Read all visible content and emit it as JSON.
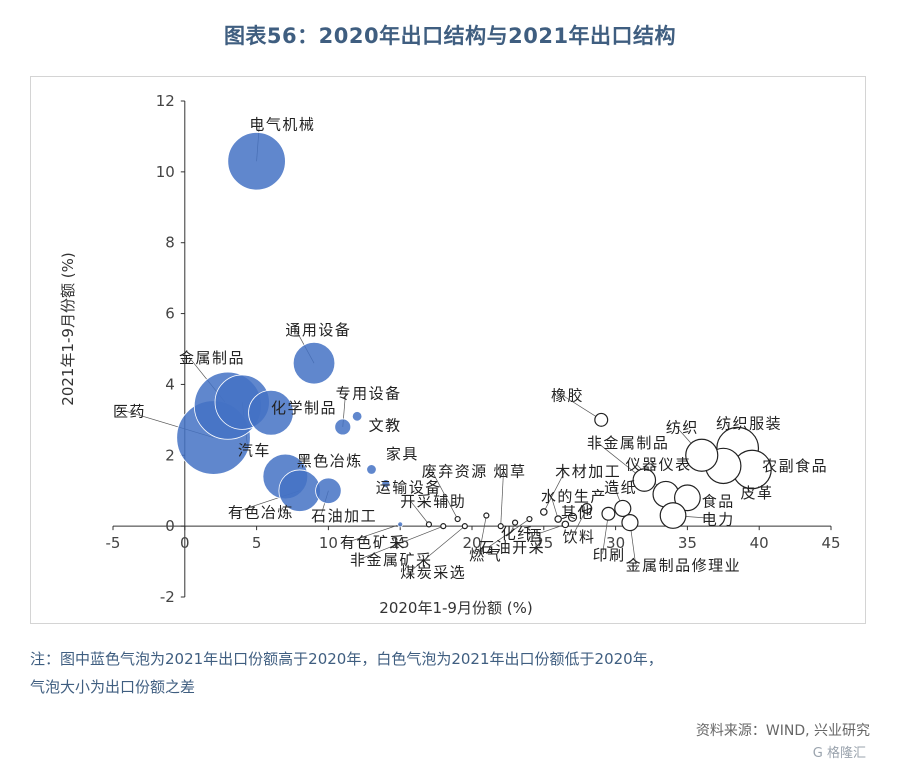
{
  "title": "图表56：2020年出口结构与2021年出口结构",
  "note_line1": "注：图中蓝色气泡为2021年出口份额高于2020年，白色气泡为2021年出口份额低于2020年，",
  "note_line2": "气泡大小为出口份额之差",
  "source": "资料来源：WIND, 兴业研究",
  "watermark": "G 格隆汇",
  "colors": {
    "increase_fill": "#4472c4",
    "decrease_fill": "#ffffff",
    "decrease_stroke": "#222222",
    "title_color": "#3f5e80",
    "axis_color": "#333333",
    "leader_color": "#555555"
  },
  "chart_data": {
    "type": "scatter",
    "subtype": "bubble",
    "xlabel": "2020年1-9月份额 (%)",
    "ylabel": "2021年1-9月份额 (%)",
    "xlim": [
      -5,
      45
    ],
    "ylim": [
      -2,
      12
    ],
    "xticks": [
      -5,
      0,
      5,
      10,
      15,
      20,
      25,
      30,
      35,
      40,
      45
    ],
    "yticks": [
      -2,
      0,
      2,
      4,
      6,
      8,
      10,
      12
    ],
    "grid": false,
    "legend": "none",
    "points": [
      {
        "name": "电气机械",
        "x": 5.0,
        "y": 10.3,
        "size": 1.8,
        "group": "increase",
        "label_x": 4.5,
        "label_y": 11.2
      },
      {
        "name": "通用设备",
        "x": 9.0,
        "y": 4.6,
        "size": 1.3,
        "group": "increase",
        "label_x": 7.0,
        "label_y": 5.4
      },
      {
        "name": "金属制品",
        "x": 3.0,
        "y": 3.4,
        "size": 2.1,
        "group": "increase",
        "label_x": -0.4,
        "label_y": 4.6
      },
      {
        "name": "医药",
        "x": 2.0,
        "y": 2.5,
        "size": 2.3,
        "group": "increase",
        "label_x": -5.0,
        "label_y": 3.1
      },
      {
        "name": "化学制品",
        "x": 6.0,
        "y": 3.2,
        "size": 1.4,
        "group": "increase",
        "label_x": 6.0,
        "label_y": 3.2
      },
      {
        "name": "汽车",
        "x": 4.0,
        "y": 3.5,
        "size": 1.7,
        "group": "increase",
        "label_x": 3.7,
        "label_y": 2.0
      },
      {
        "name": "专用设备",
        "x": 11.0,
        "y": 2.8,
        "size": 0.5,
        "group": "increase",
        "label_x": 10.5,
        "label_y": 3.6
      },
      {
        "name": "文教",
        "x": 12.0,
        "y": 3.1,
        "size": 0.3,
        "group": "increase",
        "label_x": 12.8,
        "label_y": 2.7
      },
      {
        "name": "黑色冶炼",
        "x": 7.0,
        "y": 1.4,
        "size": 1.4,
        "group": "increase",
        "label_x": 7.8,
        "label_y": 1.7
      },
      {
        "name": "家具",
        "x": 13.0,
        "y": 1.6,
        "size": 0.3,
        "group": "increase",
        "label_x": 14.0,
        "label_y": 1.9
      },
      {
        "name": "有色冶炼",
        "x": 8.0,
        "y": 1.0,
        "size": 1.3,
        "group": "increase",
        "label_x": 3.0,
        "label_y": 0.25
      },
      {
        "name": "运输设备",
        "x": 14.0,
        "y": 1.2,
        "size": 0.25,
        "group": "increase",
        "label_x": 13.3,
        "label_y": 0.95
      },
      {
        "name": "石油加工",
        "x": 10.0,
        "y": 1.0,
        "size": 0.8,
        "group": "increase",
        "label_x": 8.8,
        "label_y": 0.15
      },
      {
        "name": "有色矿采",
        "x": 15.0,
        "y": 0.05,
        "size": 0.1,
        "group": "increase",
        "label_x": 10.8,
        "label_y": -0.6
      },
      {
        "name": "开采辅助",
        "x": 17.0,
        "y": 0.05,
        "size": 0.1,
        "group": "decrease",
        "label_x": 15.0,
        "label_y": 0.55
      },
      {
        "name": "废弃资源",
        "x": 19.0,
        "y": 0.2,
        "size": 0.1,
        "group": "decrease",
        "label_x": 16.5,
        "label_y": 1.4
      },
      {
        "name": "非金属矿采",
        "x": 18.0,
        "y": 0.0,
        "size": 0.1,
        "group": "decrease",
        "label_x": 11.5,
        "label_y": -1.1
      },
      {
        "name": "煤炭采选",
        "x": 19.5,
        "y": 0.0,
        "size": 0.1,
        "group": "decrease",
        "label_x": 15.0,
        "label_y": -1.45
      },
      {
        "name": "燃气",
        "x": 21.0,
        "y": 0.3,
        "size": 0.15,
        "group": "decrease",
        "label_x": 19.8,
        "label_y": -0.95
      },
      {
        "name": "烟草",
        "x": 22.0,
        "y": 0.0,
        "size": 0.15,
        "group": "decrease",
        "label_x": 21.5,
        "label_y": 1.4
      },
      {
        "name": "化纤",
        "x": 23.0,
        "y": 0.1,
        "size": 0.15,
        "group": "decrease",
        "label_x": 22.0,
        "label_y": -0.35
      },
      {
        "name": "石油开采",
        "x": 24.0,
        "y": 0.2,
        "size": 0.15,
        "group": "decrease",
        "label_x": 20.5,
        "label_y": -0.75
      },
      {
        "name": "木材加工",
        "x": 25.0,
        "y": 0.4,
        "size": 0.2,
        "group": "decrease",
        "label_x": 25.8,
        "label_y": 1.4
      },
      {
        "name": "水的生产",
        "x": 26.0,
        "y": 0.2,
        "size": 0.2,
        "group": "decrease",
        "label_x": 24.8,
        "label_y": 0.7
      },
      {
        "name": "其他",
        "x": 27.0,
        "y": 0.25,
        "size": 0.25,
        "group": "decrease",
        "label_x": 26.2,
        "label_y": 0.25
      },
      {
        "name": "酒",
        "x": 26.5,
        "y": 0.05,
        "size": 0.2,
        "group": "decrease",
        "label_x": 23.8,
        "label_y": -0.4
      },
      {
        "name": "饮料",
        "x": 28.0,
        "y": 0.5,
        "size": 0.3,
        "group": "decrease",
        "label_x": 26.3,
        "label_y": -0.45
      },
      {
        "name": "印刷",
        "x": 29.5,
        "y": 0.35,
        "size": 0.4,
        "group": "decrease",
        "label_x": 28.4,
        "label_y": -0.95
      },
      {
        "name": "造纸",
        "x": 30.5,
        "y": 0.5,
        "size": 0.5,
        "group": "decrease",
        "label_x": 29.2,
        "label_y": 0.95
      },
      {
        "name": "橡胶",
        "x": 29.0,
        "y": 3.0,
        "size": 0.4,
        "group": "decrease",
        "label_x": 25.5,
        "label_y": 3.55
      },
      {
        "name": "非金属制品",
        "x": 32.0,
        "y": 1.3,
        "size": 0.7,
        "group": "decrease",
        "label_x": 28.0,
        "label_y": 2.2
      },
      {
        "name": "仪器仪表",
        "x": 33.5,
        "y": 0.9,
        "size": 0.8,
        "group": "decrease",
        "label_x": 30.7,
        "label_y": 1.6
      },
      {
        "name": "纺织",
        "x": 36.0,
        "y": 2.0,
        "size": 1.0,
        "group": "decrease",
        "label_x": 33.5,
        "label_y": 2.65
      },
      {
        "name": "纺织服装",
        "x": 38.5,
        "y": 2.2,
        "size": 1.3,
        "group": "decrease",
        "label_x": 37.0,
        "label_y": 2.75
      },
      {
        "name": "农副食品",
        "x": 39.5,
        "y": 1.6,
        "size": 1.2,
        "group": "decrease",
        "label_x": 40.2,
        "label_y": 1.55
      },
      {
        "name": "皮革",
        "x": 37.5,
        "y": 1.7,
        "size": 1.1,
        "group": "decrease",
        "label_x": 38.7,
        "label_y": 0.8
      },
      {
        "name": "食品",
        "x": 35.0,
        "y": 0.8,
        "size": 0.8,
        "group": "decrease",
        "label_x": 36.0,
        "label_y": 0.55
      },
      {
        "name": "电力",
        "x": 34.0,
        "y": 0.3,
        "size": 0.8,
        "group": "decrease",
        "label_x": 36.0,
        "label_y": 0.05
      },
      {
        "name": "金属制品修理业",
        "x": 31.0,
        "y": 0.1,
        "size": 0.5,
        "group": "decrease",
        "label_x": 30.7,
        "label_y": -1.25
      }
    ]
  }
}
